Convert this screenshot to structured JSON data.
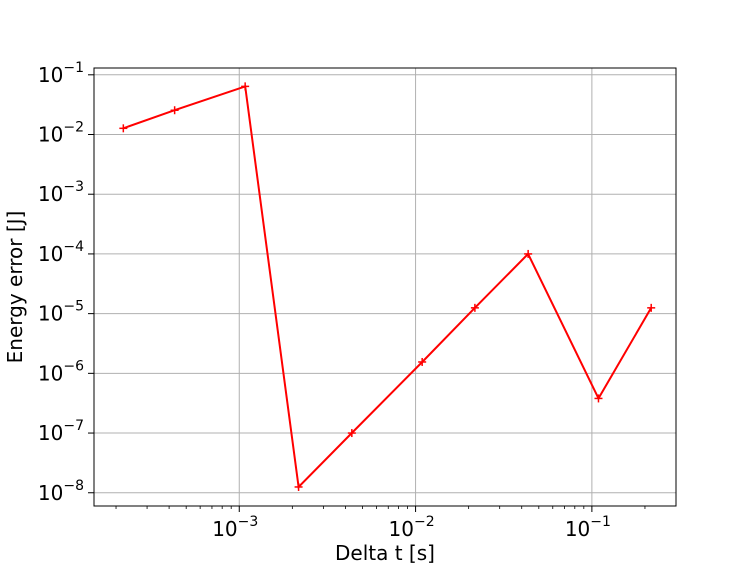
{
  "chart_data": {
    "type": "line",
    "title": "",
    "xlabel": "Delta t [s]",
    "ylabel": "Energy error [J]",
    "xscale": "log",
    "yscale": "log",
    "grid": true,
    "xlim": [
      0.00015,
      0.3
    ],
    "ylim": [
      6e-09,
      0.13
    ],
    "x_ticks": [
      {
        "value": 0.001,
        "base": "10",
        "exp": "−3"
      },
      {
        "value": 0.01,
        "base": "10",
        "exp": "−2"
      },
      {
        "value": 0.1,
        "base": "10",
        "exp": "−1"
      }
    ],
    "y_ticks": [
      {
        "value": 1e-08,
        "base": "10",
        "exp": "−8"
      },
      {
        "value": 1e-07,
        "base": "10",
        "exp": "−7"
      },
      {
        "value": 1e-06,
        "base": "10",
        "exp": "−6"
      },
      {
        "value": 1e-05,
        "base": "10",
        "exp": "−5"
      },
      {
        "value": 0.0001,
        "base": "10",
        "exp": "−4"
      },
      {
        "value": 0.001,
        "base": "10",
        "exp": "−3"
      },
      {
        "value": 0.01,
        "base": "10",
        "exp": "−2"
      },
      {
        "value": 0.1,
        "base": "10",
        "exp": "−1"
      }
    ],
    "series": [
      {
        "color": "#ff0000",
        "marker": "plus",
        "x": [
          0.00022,
          0.00043,
          0.00108,
          0.00217,
          0.00435,
          0.0109,
          0.0217,
          0.0435,
          0.109,
          0.217
        ],
        "y": [
          0.0127,
          0.0255,
          0.064,
          1.25e-08,
          1e-07,
          1.55e-06,
          1.25e-05,
          0.0001,
          3.8e-07,
          1.25e-05
        ]
      }
    ]
  }
}
